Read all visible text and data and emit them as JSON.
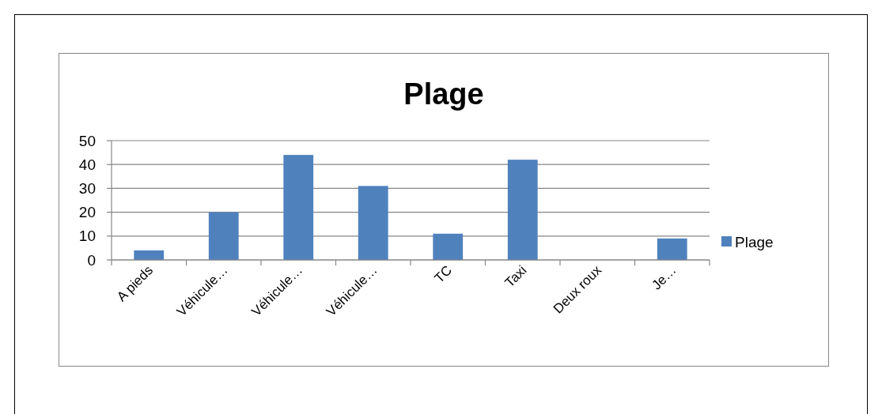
{
  "chart_data": {
    "type": "bar",
    "title": "Plage",
    "categories": [
      "A pieds",
      "Véhicule…",
      "Véhicule…",
      "Véhicule…",
      "TC",
      "Taxi",
      "Deux roux",
      "Je…"
    ],
    "series": [
      {
        "name": "Plage",
        "color": "#4f81bd",
        "values": [
          4,
          20,
          44,
          31,
          11,
          42,
          0,
          9
        ]
      }
    ],
    "ylim": [
      0,
      50
    ],
    "yticks": [
      0,
      10,
      20,
      30,
      40,
      50
    ],
    "grid": "y",
    "legend": "right"
  }
}
